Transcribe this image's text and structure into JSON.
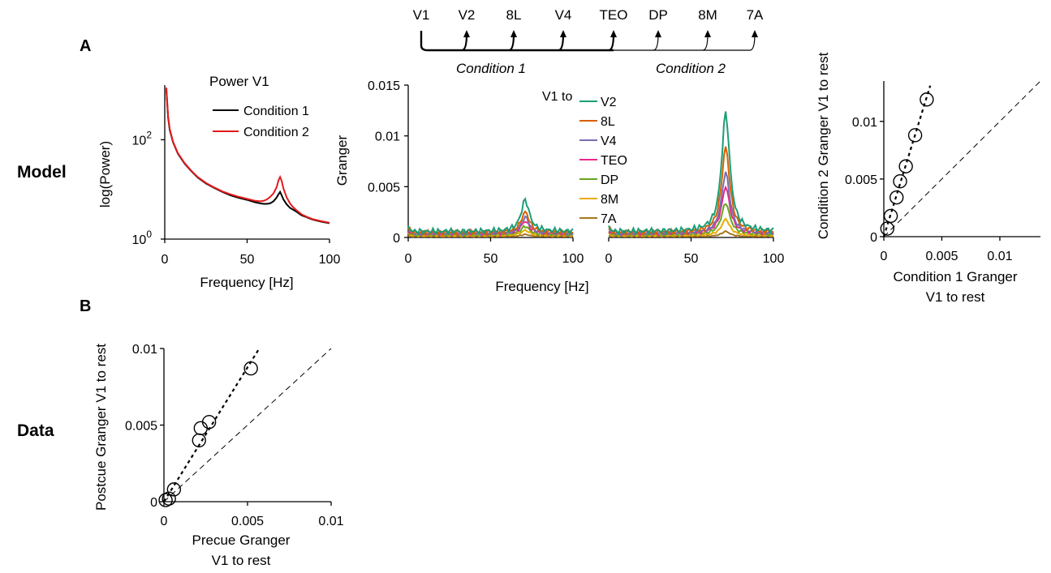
{
  "panels": {
    "a": "A",
    "b": "B"
  },
  "rows": {
    "model": "Model",
    "data": "Data"
  },
  "colors": {
    "V2": "#1b9e77",
    "8L": "#d95f02",
    "V4": "#7570b3",
    "TEO": "#e7298a",
    "DP": "#66a61e",
    "8M": "#e6ab02",
    "7A": "#a6761d",
    "condition1": "#000000",
    "condition2": "#e41a1c"
  },
  "hierarchy": {
    "areas": [
      "V1",
      "V2",
      "8L",
      "V4",
      "TEO",
      "DP",
      "8M",
      "7A"
    ],
    "condition1_label": "Condition 1",
    "condition2_label": "Condition 2"
  },
  "chart_data": [
    {
      "id": "power",
      "type": "line",
      "title": "Power V1",
      "xlabel": "Frequency [Hz]",
      "ylabel": "log(Power)",
      "xlim": [
        0,
        100
      ],
      "ylim_log10": [
        0,
        3.1
      ],
      "yscale": "log",
      "xticks": [
        "0",
        "50",
        "100"
      ],
      "yticks": [
        {
          "base": "10",
          "exp": "0"
        },
        {
          "base": "10",
          "exp": "2"
        }
      ],
      "legend_position": "upper-right",
      "series": [
        {
          "name": "Condition 1",
          "color": "#000000",
          "x": [
            1,
            2,
            3,
            5,
            8,
            12,
            16,
            20,
            25,
            30,
            35,
            40,
            45,
            50,
            55,
            58,
            60,
            62,
            64,
            66,
            68,
            69,
            70,
            71,
            72,
            74,
            76,
            78,
            80,
            83,
            86,
            90,
            95,
            100
          ],
          "log10": [
            3.0,
            2.45,
            2.2,
            1.95,
            1.72,
            1.52,
            1.37,
            1.24,
            1.12,
            1.03,
            0.95,
            0.88,
            0.83,
            0.79,
            0.74,
            0.72,
            0.71,
            0.71,
            0.72,
            0.76,
            0.84,
            0.9,
            0.95,
            0.88,
            0.8,
            0.7,
            0.63,
            0.59,
            0.55,
            0.48,
            0.44,
            0.39,
            0.35,
            0.32
          ]
        },
        {
          "name": "Condition 2",
          "color": "#e41a1c",
          "x": [
            1,
            2,
            3,
            5,
            8,
            12,
            16,
            20,
            25,
            30,
            35,
            40,
            45,
            50,
            55,
            58,
            60,
            62,
            64,
            66,
            68,
            69,
            70,
            71,
            72,
            74,
            76,
            78,
            80,
            83,
            86,
            90,
            95,
            100
          ],
          "log10": [
            3.05,
            2.47,
            2.22,
            1.96,
            1.73,
            1.53,
            1.38,
            1.25,
            1.13,
            1.04,
            0.96,
            0.9,
            0.85,
            0.81,
            0.77,
            0.76,
            0.77,
            0.8,
            0.85,
            0.92,
            1.05,
            1.18,
            1.25,
            1.17,
            1.02,
            0.84,
            0.72,
            0.64,
            0.58,
            0.5,
            0.45,
            0.4,
            0.36,
            0.33
          ]
        }
      ]
    },
    {
      "id": "granger",
      "type": "line",
      "ylabel": "Granger",
      "xlabel": "Frequency [Hz]",
      "xlim": [
        0,
        100
      ],
      "ylim": [
        0,
        0.015
      ],
      "yticks": [
        "0",
        "0.005",
        "0.01",
        "0.015"
      ],
      "xticks": [
        "0",
        "50",
        "100"
      ],
      "legend_title": "V1 to",
      "legend_position": "top-center",
      "series": [
        {
          "name": "V2",
          "color": "#1b9e77",
          "baseline": 0.0006,
          "peak1": 0.0037,
          "peak2": 0.0123
        },
        {
          "name": "8L",
          "color": "#d95f02",
          "baseline": 0.0005,
          "peak1": 0.0025,
          "peak2": 0.0089
        },
        {
          "name": "V4",
          "color": "#7570b3",
          "baseline": 0.0004,
          "peak1": 0.002,
          "peak2": 0.0064
        },
        {
          "name": "TEO",
          "color": "#e7298a",
          "baseline": 0.0004,
          "peak1": 0.0016,
          "peak2": 0.005
        },
        {
          "name": "DP",
          "color": "#66a61e",
          "baseline": 0.0003,
          "peak1": 0.0011,
          "peak2": 0.0034
        },
        {
          "name": "8M",
          "color": "#e6ab02",
          "baseline": 0.0002,
          "peak1": 0.0007,
          "peak2": 0.0018
        },
        {
          "name": "7A",
          "color": "#a6761d",
          "baseline": 0.0001,
          "peak1": 0.0003,
          "peak2": 0.0006
        }
      ]
    },
    {
      "id": "scatter_model",
      "type": "scatter",
      "xlabel": "Condition 1 Granger",
      "xlabel2": "V1 to rest",
      "ylabel": "Condition 2 Granger V1 to rest",
      "xlim": [
        0,
        0.0135
      ],
      "ylim": [
        0,
        0.0135
      ],
      "xticks": [
        "0",
        "0.005",
        "0.01"
      ],
      "yticks": [
        "0",
        "0.005",
        "0.01"
      ],
      "points": [
        [
          0.0037,
          0.0119
        ],
        [
          0.0027,
          0.0088
        ],
        [
          0.0019,
          0.0061
        ],
        [
          0.0014,
          0.0048
        ],
        [
          0.0011,
          0.0034
        ],
        [
          0.0006,
          0.0018
        ],
        [
          0.0003,
          0.0007
        ]
      ],
      "fit": [
        [
          0,
          0.0
        ],
        [
          0.004,
          0.0131
        ]
      ],
      "identity": [
        [
          0,
          0
        ],
        [
          0.0135,
          0.0135
        ]
      ]
    },
    {
      "id": "scatter_data",
      "type": "scatter",
      "xlabel": "Precue Granger",
      "xlabel2": "V1 to rest",
      "ylabel": "Postcue Granger V1 to rest",
      "xlim": [
        0,
        0.01
      ],
      "ylim": [
        0,
        0.01
      ],
      "xticks": [
        "0",
        "0.005",
        "0.01"
      ],
      "yticks": [
        "0",
        "0.005",
        "0.01"
      ],
      "points": [
        [
          0.0052,
          0.0087
        ],
        [
          0.0027,
          0.0052
        ],
        [
          0.0022,
          0.0048
        ],
        [
          0.0021,
          0.004
        ],
        [
          0.0006,
          0.0008
        ],
        [
          0.0003,
          0.0002
        ],
        [
          0.0001,
          0.0001
        ]
      ],
      "fit": [
        [
          0,
          0
        ],
        [
          0.0057,
          0.01
        ]
      ],
      "identity": [
        [
          0,
          0
        ],
        [
          0.01,
          0.01
        ]
      ]
    }
  ]
}
